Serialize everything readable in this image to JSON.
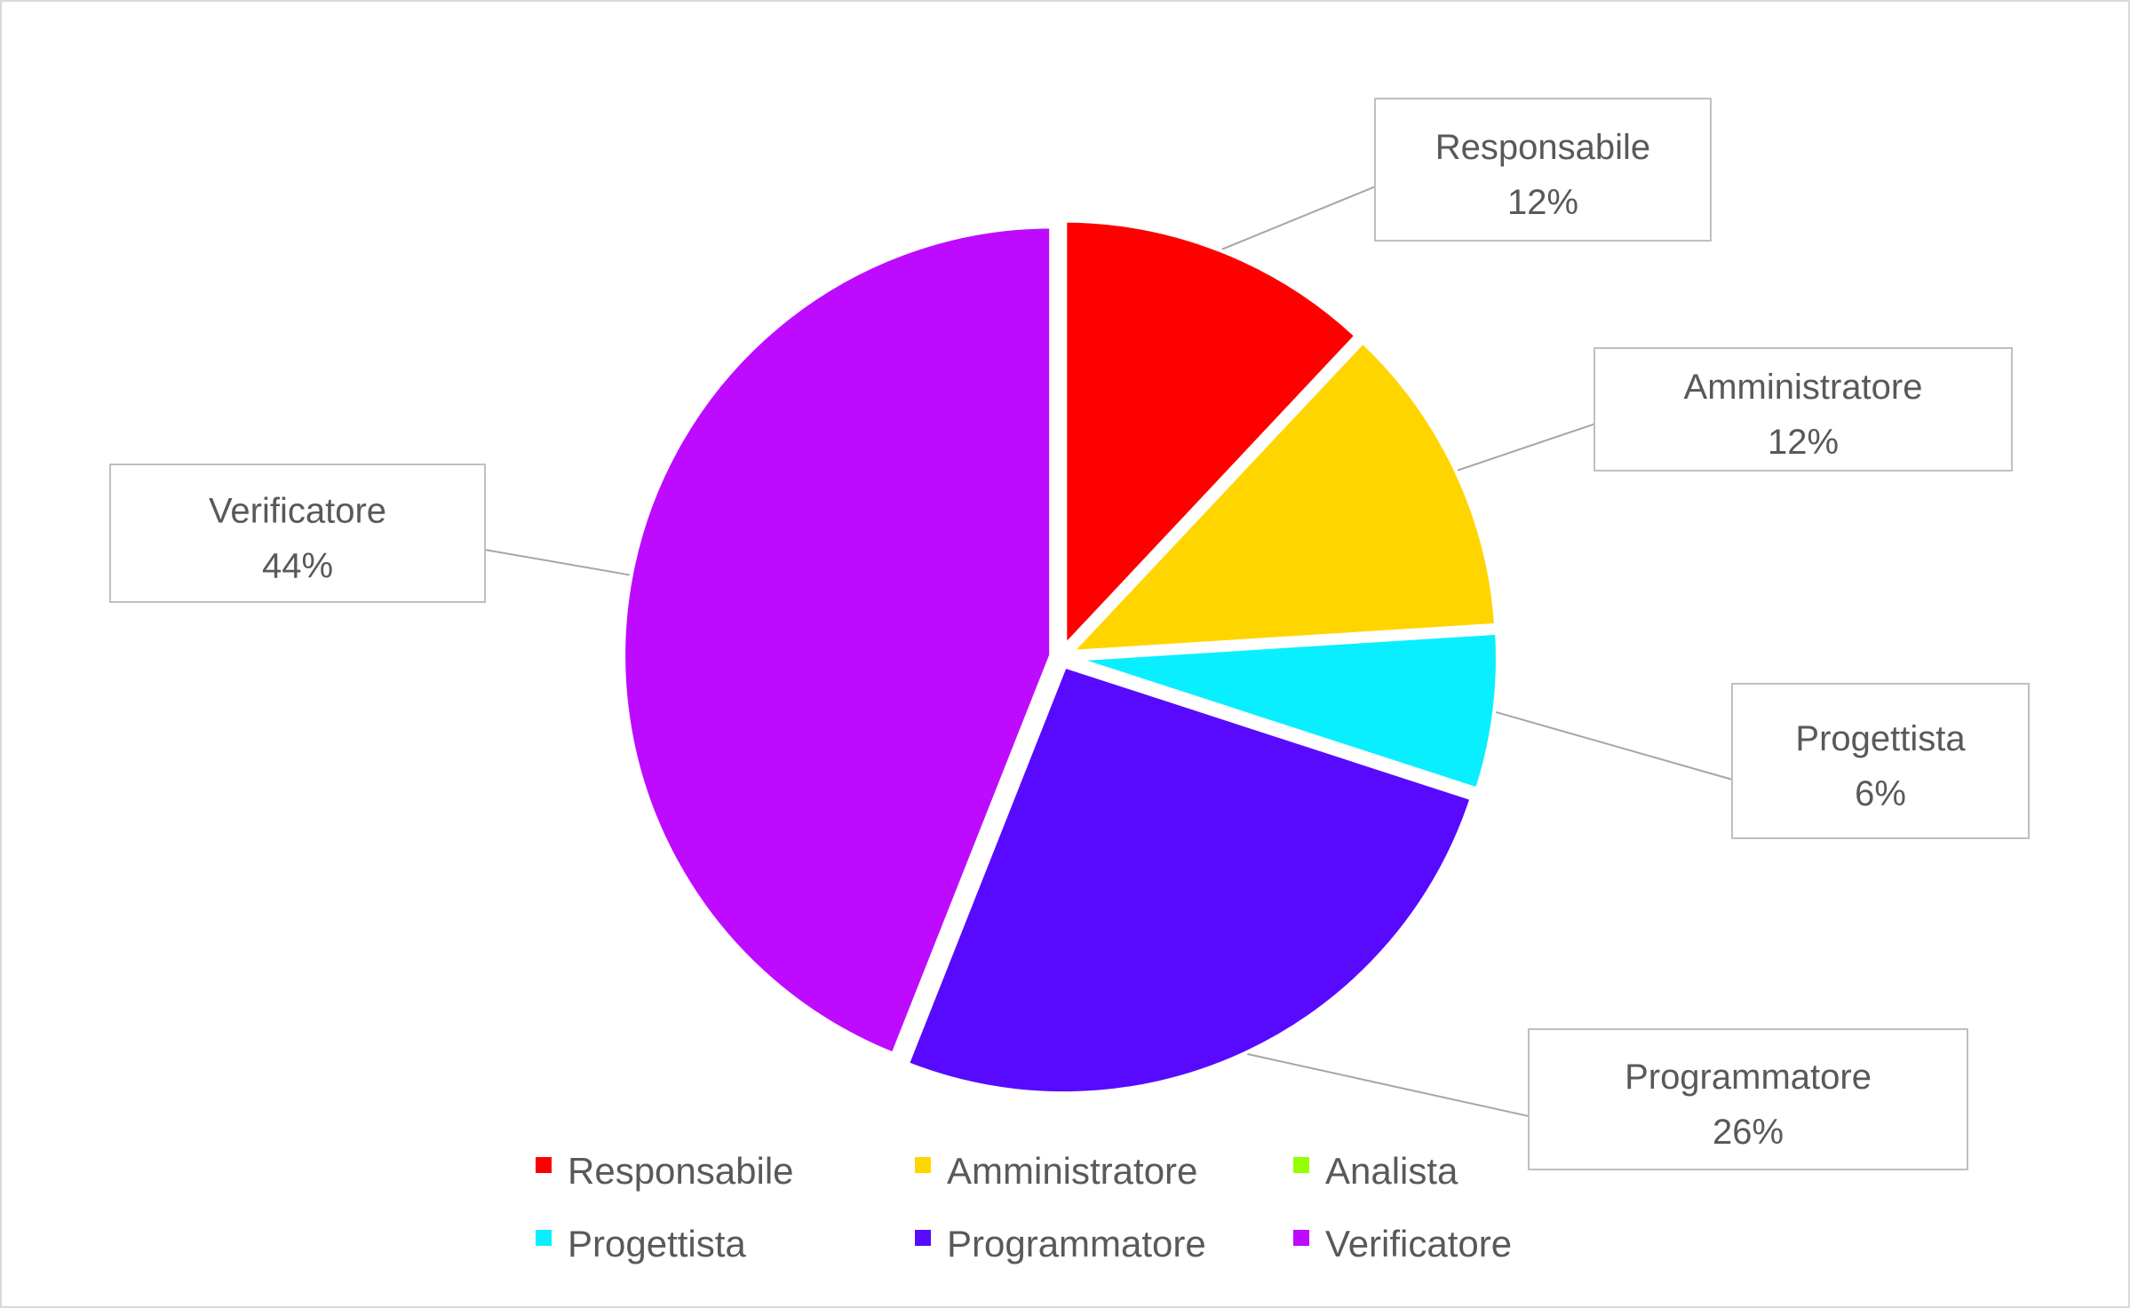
{
  "chart_data": {
    "type": "pie",
    "title": "",
    "start_angle_deg": 0,
    "direction": "clockwise",
    "slices": [
      {
        "name": "Responsabile",
        "value": 12,
        "label": "12%",
        "color": "#ff0000"
      },
      {
        "name": "Amministratore",
        "value": 12,
        "label": "12%",
        "color": "#ffd500"
      },
      {
        "name": "Analista",
        "value": 0,
        "label": "",
        "color": "#94ff00"
      },
      {
        "name": "Progettista",
        "value": 6,
        "label": "6%",
        "color": "#0aefff"
      },
      {
        "name": "Programmatore",
        "value": 26,
        "label": "26%",
        "color": "#580aff"
      },
      {
        "name": "Verificatore",
        "value": 44,
        "label": "44%",
        "color": "#be0aff"
      }
    ],
    "legend": {
      "placement": "bottom",
      "entries": [
        "Responsabile",
        "Amministratore",
        "Analista",
        "Progettista",
        "Programmatore",
        "Verificatore"
      ]
    }
  }
}
